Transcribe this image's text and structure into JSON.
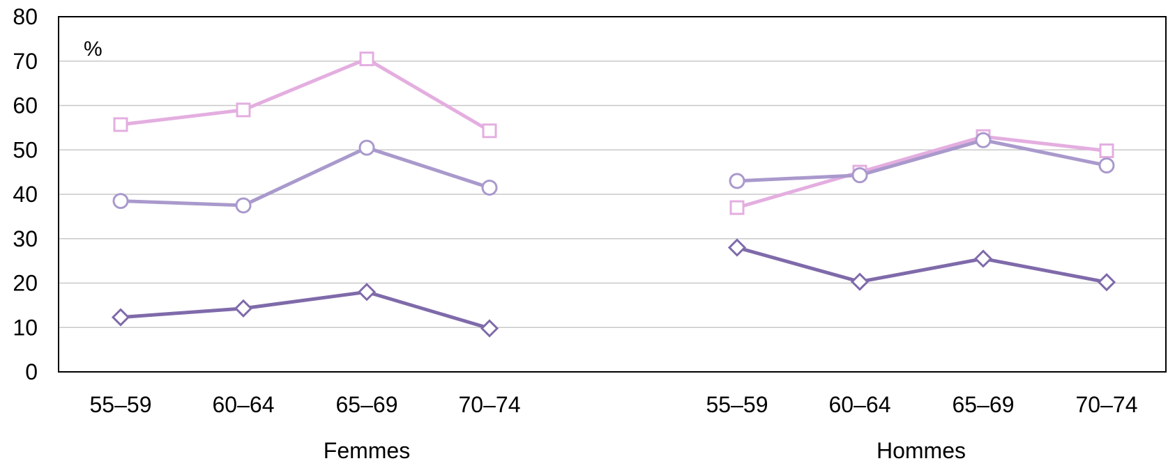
{
  "chart_data": {
    "type": "line",
    "unit_label": "%",
    "ylim": [
      0,
      80
    ],
    "yticks": [
      0,
      10,
      20,
      30,
      40,
      50,
      60,
      70,
      80
    ],
    "grid": true,
    "groups": [
      {
        "label": "Femmes",
        "categories": [
          "55–59",
          "60–64",
          "65–69",
          "70–74"
        ],
        "series": [
          {
            "marker": "square",
            "color": "#e4aee0",
            "values": [
              55.7,
              59.0,
              70.5,
              54.3
            ]
          },
          {
            "marker": "circle",
            "color": "#a999cc",
            "values": [
              38.5,
              37.5,
              50.5,
              41.5
            ]
          },
          {
            "marker": "diamond",
            "color": "#7f6aaa",
            "values": [
              12.3,
              14.3,
              18.0,
              9.8
            ]
          }
        ]
      },
      {
        "label": "Hommes",
        "categories": [
          "55–59",
          "60–64",
          "65–69",
          "70–74"
        ],
        "series": [
          {
            "marker": "square",
            "color": "#e4aee0",
            "values": [
              37.0,
              45.0,
              53.0,
              49.8
            ]
          },
          {
            "marker": "circle",
            "color": "#a999cc",
            "values": [
              43.0,
              44.3,
              52.2,
              46.5
            ]
          },
          {
            "marker": "diamond",
            "color": "#7f6aaa",
            "values": [
              28.0,
              20.3,
              25.5,
              20.2
            ]
          }
        ]
      }
    ]
  }
}
